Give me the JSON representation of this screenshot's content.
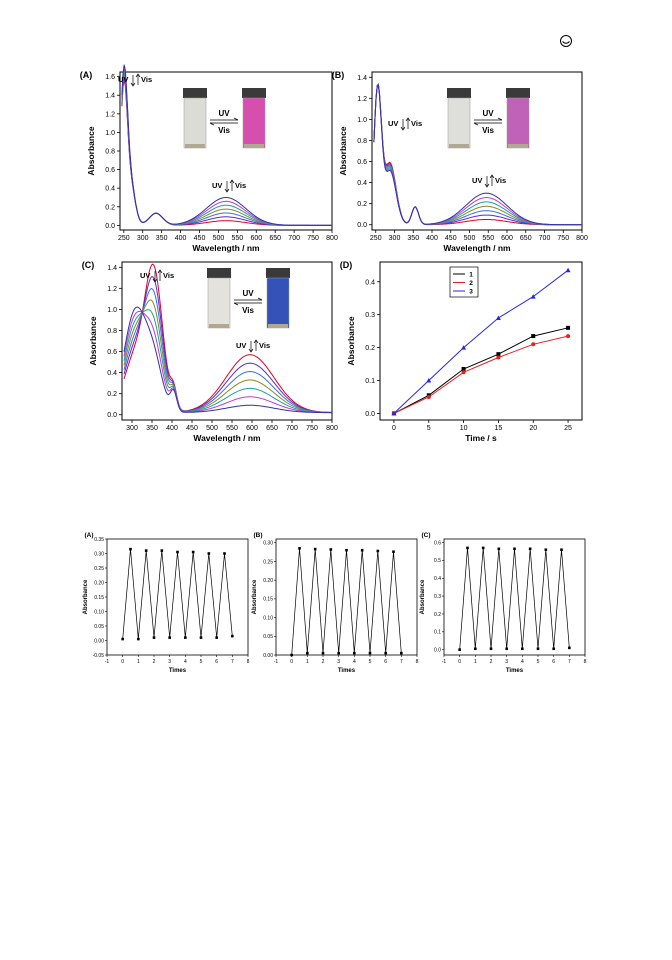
{
  "page_icon": "logo-circle-icon",
  "figure1": {
    "panels": [
      {
        "label": "(A)",
        "ylabel": "Absorbance",
        "xlabel": "Wavelength / nm",
        "yticks": [
          "0.0",
          "0.2",
          "0.4",
          "0.6",
          "0.8",
          "1.0",
          "1.2",
          "1.4",
          "1.6"
        ],
        "xticks": [
          "250",
          "300",
          "350",
          "400",
          "450",
          "500",
          "550",
          "600",
          "650",
          "700",
          "750",
          "800"
        ],
        "annot_uv1": "UV",
        "annot_vis1": "Vis",
        "annot_uv2": "UV",
        "annot_vis2": "Vis",
        "inset_uv": "UV",
        "inset_vis": "Vis",
        "vial_colors": [
          "#dcdcd6",
          "#d64fae"
        ]
      },
      {
        "label": "(B)",
        "ylabel": "Absorbance",
        "xlabel": "Wavelength / nm",
        "yticks": [
          "0.0",
          "0.2",
          "0.4",
          "0.6",
          "0.8",
          "1.0",
          "1.2",
          "1.4"
        ],
        "xticks": [
          "250",
          "300",
          "350",
          "400",
          "450",
          "500",
          "550",
          "600",
          "650",
          "700",
          "750",
          "800"
        ],
        "annot_uv1": "UV",
        "annot_vis1": "Vis",
        "annot_uv2": "UV",
        "annot_vis2": "Vis",
        "inset_uv": "UV",
        "inset_vis": "Vis",
        "vial_colors": [
          "#dededa",
          "#c062b8"
        ]
      },
      {
        "label": "(C)",
        "ylabel": "Absorbance",
        "xlabel": "Wavelength / nm",
        "yticks": [
          "0.0",
          "0.2",
          "0.4",
          "0.6",
          "0.8",
          "1.0",
          "1.2",
          "1.4"
        ],
        "xticks": [
          "300",
          "350",
          "400",
          "450",
          "500",
          "550",
          "600",
          "650",
          "700",
          "750",
          "800"
        ],
        "annot_uv1": "UV",
        "annot_vis1": "Vis",
        "annot_uv2": "UV",
        "annot_vis2": "Vis",
        "inset_uv": "UV",
        "inset_vis": "Vis",
        "vial_colors": [
          "#e4e2dc",
          "#3552b8"
        ]
      },
      {
        "label": "(D)",
        "ylabel": "Absorbance",
        "xlabel": "Time / s",
        "yticks": [
          "0.0",
          "0.1",
          "0.2",
          "0.3",
          "0.4"
        ],
        "xticks": [
          "0",
          "5",
          "10",
          "15",
          "20",
          "25"
        ],
        "legend": [
          "1",
          "2",
          "3"
        ]
      }
    ]
  },
  "figure2": {
    "panels": [
      {
        "label": "(A)",
        "ylabel": "Absorbance",
        "xlabel": "Times",
        "yticks": [
          "-0.05",
          "0.00",
          "0.05",
          "0.10",
          "0.15",
          "0.20",
          "0.25",
          "0.30",
          "0.35"
        ],
        "xticks": [
          "-1",
          "0",
          "1",
          "2",
          "3",
          "4",
          "5",
          "6",
          "7",
          "8"
        ]
      },
      {
        "label": "(B)",
        "ylabel": "Absorbance",
        "xlabel": "Times",
        "yticks": [
          "0.00",
          "0.05",
          "0.10",
          "0.15",
          "0.20",
          "0.25",
          "0.30"
        ],
        "xticks": [
          "-1",
          "0",
          "1",
          "2",
          "3",
          "4",
          "5",
          "6",
          "7",
          "8"
        ]
      },
      {
        "label": "(C)",
        "ylabel": "Absorbance",
        "xlabel": "Times",
        "yticks": [
          "0.0",
          "0.1",
          "0.2",
          "0.3",
          "0.4",
          "0.5",
          "0.6"
        ],
        "xticks": [
          "-1",
          "0",
          "1",
          "2",
          "3",
          "4",
          "5",
          "6",
          "7",
          "8"
        ]
      }
    ]
  },
  "chart_data": [
    {
      "type": "line",
      "panel": "(A)",
      "xlabel": "Wavelength / nm",
      "ylabel": "Absorbance",
      "xlim": [
        240,
        800
      ],
      "ylim": [
        -0.05,
        1.65
      ],
      "uv_peak": {
        "x": 250,
        "y_values": [
          1.6,
          1.56,
          1.52,
          1.48,
          1.45,
          1.43,
          1.41
        ]
      },
      "vis_band": {
        "x": 520,
        "y_values": [
          0.05,
          0.1,
          0.14,
          0.19,
          0.23,
          0.27,
          0.3
        ]
      }
    },
    {
      "type": "line",
      "panel": "(B)",
      "xlabel": "Wavelength / nm",
      "ylabel": "Absorbance",
      "xlim": [
        240,
        800
      ],
      "ylim": [
        -0.05,
        1.45
      ],
      "uv_peak": {
        "x": 255,
        "y_values": [
          1.3,
          1.3,
          1.29,
          1.29,
          1.28,
          1.28,
          1.27
        ]
      },
      "vis_band": {
        "x": 545,
        "y_values": [
          0.05,
          0.1,
          0.15,
          0.2,
          0.24,
          0.27,
          0.3
        ]
      }
    },
    {
      "type": "line",
      "panel": "(C)",
      "xlabel": "Wavelength / nm",
      "ylabel": "Absorbance",
      "xlim": [
        275,
        800
      ],
      "ylim": [
        -0.05,
        1.45
      ],
      "uv_peak": {
        "x": 355,
        "y_values": [
          1.27,
          1.13,
          0.98,
          0.84,
          0.7,
          0.55,
          0.42
        ]
      },
      "vis_band": {
        "x": 595,
        "y_values": [
          0.07,
          0.14,
          0.22,
          0.31,
          0.4,
          0.48,
          0.55
        ]
      }
    },
    {
      "type": "line",
      "panel": "(D)",
      "xlabel": "Time / s",
      "ylabel": "Absorbance",
      "xlim": [
        -2,
        27
      ],
      "ylim": [
        -0.02,
        0.46
      ],
      "x": [
        0,
        5,
        10,
        15,
        20,
        25
      ],
      "series": [
        {
          "name": "1",
          "color": "#000000",
          "values": [
            0.0,
            0.055,
            0.135,
            0.18,
            0.235,
            0.26
          ]
        },
        {
          "name": "2",
          "color": "#e8201c",
          "values": [
            0.0,
            0.05,
            0.125,
            0.17,
            0.21,
            0.235
          ]
        },
        {
          "name": "3",
          "color": "#2626e8",
          "values": [
            0.0,
            0.1,
            0.2,
            0.29,
            0.355,
            0.435
          ]
        }
      ]
    },
    {
      "type": "line",
      "panel": "(A) cycles",
      "xlabel": "Times",
      "ylabel": "Absorbance",
      "xlim": [
        -1,
        8
      ],
      "ylim": [
        -0.05,
        0.35
      ],
      "x": [
        0,
        0.5,
        1,
        1.5,
        2,
        2.5,
        3,
        3.5,
        4,
        4.5,
        5,
        5.5,
        6,
        6.5,
        7
      ],
      "values": [
        0.005,
        0.315,
        0.005,
        0.31,
        0.01,
        0.31,
        0.01,
        0.305,
        0.01,
        0.305,
        0.01,
        0.3,
        0.01,
        0.3,
        0.015
      ]
    },
    {
      "type": "line",
      "panel": "(B) cycles",
      "xlabel": "Times",
      "ylabel": "Absorbance",
      "xlim": [
        -1,
        8
      ],
      "ylim": [
        0.0,
        0.31
      ],
      "x": [
        0,
        0.5,
        1,
        1.5,
        2,
        2.5,
        3,
        3.5,
        4,
        4.5,
        5,
        5.5,
        6,
        6.5,
        7
      ],
      "values": [
        0.0,
        0.285,
        0.005,
        0.283,
        0.005,
        0.282,
        0.005,
        0.28,
        0.005,
        0.28,
        0.005,
        0.278,
        0.005,
        0.276,
        0.005
      ]
    },
    {
      "type": "line",
      "panel": "(C) cycles",
      "xlabel": "Times",
      "ylabel": "Absorbance",
      "xlim": [
        -1,
        8
      ],
      "ylim": [
        -0.03,
        0.62
      ],
      "x": [
        0,
        0.5,
        1,
        1.5,
        2,
        2.5,
        3,
        3.5,
        4,
        4.5,
        5,
        5.5,
        6,
        6.5,
        7
      ],
      "values": [
        0.0,
        0.57,
        0.005,
        0.57,
        0.005,
        0.565,
        0.005,
        0.565,
        0.005,
        0.565,
        0.005,
        0.56,
        0.005,
        0.56,
        0.01
      ]
    }
  ]
}
